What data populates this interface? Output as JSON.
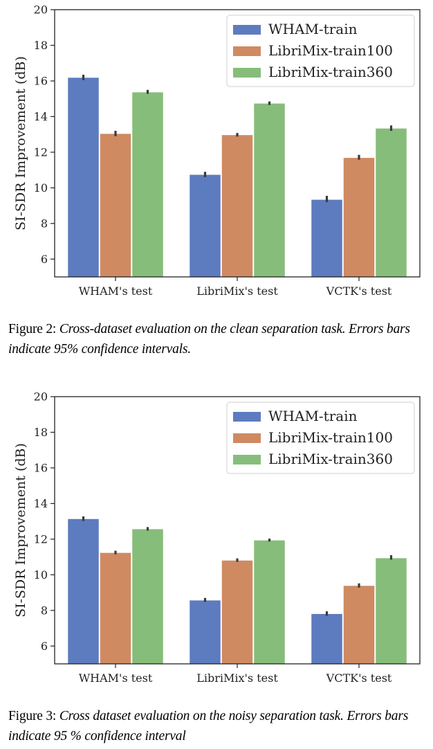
{
  "figures": [
    {
      "caption": {
        "label": "Figure 2:",
        "text": "Cross-dataset evaluation on the clean separation task. Errors bars indicate 95% confidence intervals."
      }
    },
    {
      "caption": {
        "label": "Figure 3:",
        "text": "Cross dataset evaluation on the noisy separation task. Errors bars indicate 95 % confidence interval"
      }
    }
  ],
  "chart_data": [
    {
      "type": "bar",
      "categories": [
        "WHAM's test",
        "LibriMix's test",
        "VCTK's test"
      ],
      "series": [
        {
          "name": "WHAM-train",
          "color": "#5d7bbf",
          "values": [
            16.2,
            10.75,
            9.35
          ],
          "ci": [
            [
              16.05,
              16.35
            ],
            [
              10.6,
              10.9
            ],
            [
              9.2,
              9.55
            ]
          ]
        },
        {
          "name": "LibriMix-train100",
          "color": "#cf8a62",
          "values": [
            13.05,
            12.98,
            11.7
          ],
          "ci": [
            [
              12.9,
              13.2
            ],
            [
              12.88,
              13.08
            ],
            [
              11.58,
              11.85
            ]
          ]
        },
        {
          "name": "LibriMix-train360",
          "color": "#86bd7a",
          "values": [
            15.38,
            14.75,
            13.35
          ],
          "ci": [
            [
              15.28,
              15.5
            ],
            [
              14.65,
              14.85
            ],
            [
              13.2,
              13.5
            ]
          ]
        }
      ],
      "xlabel": "",
      "ylabel": "SI-SDR Improvement (dB)",
      "ylim": [
        5,
        20
      ],
      "yticks": [
        6,
        8,
        10,
        12,
        14,
        16,
        18,
        20
      ],
      "legend": "top-right",
      "grid": false
    },
    {
      "type": "bar",
      "categories": [
        "WHAM's test",
        "LibriMix's test",
        "VCTK's test"
      ],
      "series": [
        {
          "name": "WHAM-train",
          "color": "#5d7bbf",
          "values": [
            13.15,
            8.58,
            7.82
          ],
          "ci": [
            [
              13.02,
              13.28
            ],
            [
              8.48,
              8.7
            ],
            [
              7.7,
              7.95
            ]
          ]
        },
        {
          "name": "LibriMix-train100",
          "color": "#cf8a62",
          "values": [
            11.25,
            10.82,
            9.4
          ],
          "ci": [
            [
              11.15,
              11.35
            ],
            [
              10.73,
              10.92
            ],
            [
              9.28,
              9.52
            ]
          ]
        },
        {
          "name": "LibriMix-train360",
          "color": "#86bd7a",
          "values": [
            12.58,
            11.95,
            10.95
          ],
          "ci": [
            [
              12.48,
              12.68
            ],
            [
              11.87,
              12.03
            ],
            [
              10.85,
              11.1
            ]
          ]
        }
      ],
      "xlabel": "",
      "ylabel": "SI-SDR Improvement (dB)",
      "ylim": [
        5,
        20
      ],
      "yticks": [
        6,
        8,
        10,
        12,
        14,
        16,
        18,
        20
      ],
      "legend": "top-right",
      "grid": false
    }
  ]
}
